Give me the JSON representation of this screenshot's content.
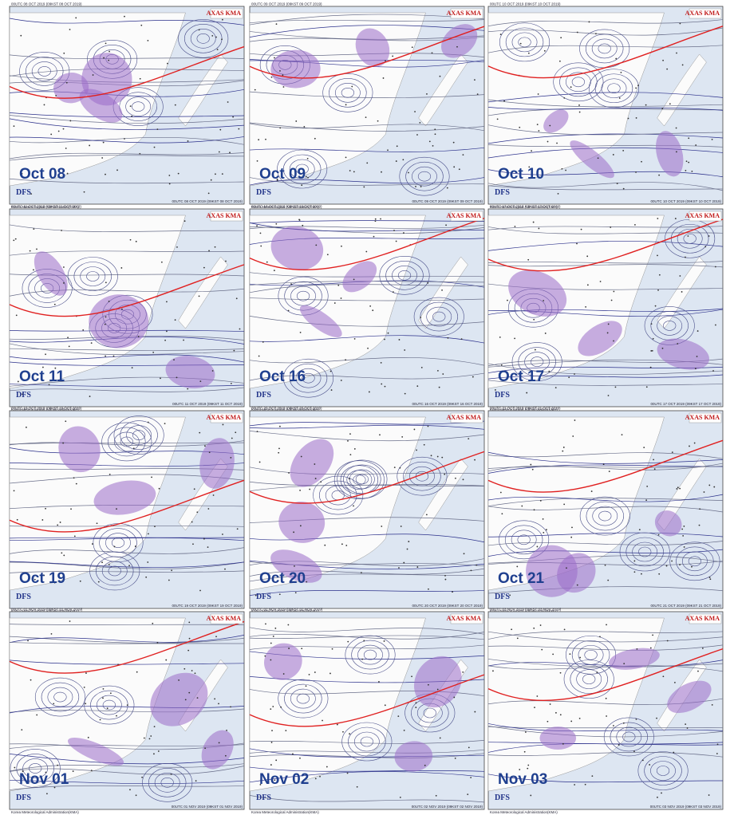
{
  "panels": [
    {
      "label": "Oct 08",
      "caption": "00UTC 08 OCT 2019 (09KST 08 OCT 2019)",
      "brand": "AXAS KMA",
      "source": "DFS",
      "credit": "Korea Meteorological Administration(KMA)"
    },
    {
      "label": "Oct 09",
      "caption": "00UTC 09 OCT 2019 (09KST 09 OCT 2019)",
      "brand": "AXAS KMA",
      "source": "DFS",
      "credit": "Korea Meteorological Administration(KMA)"
    },
    {
      "label": "Oct 10",
      "caption": "00UTC 10 OCT 2019 (09KST 10 OCT 2019)",
      "brand": "AXAS KMA",
      "source": "DFS",
      "credit": "Korea Meteorological Administration(KMA)"
    },
    {
      "label": "Oct 11",
      "caption": "00UTC 11 OCT 2019 (09KST 11 OCT 2019)",
      "brand": "AXAS KMA",
      "source": "DFS",
      "credit": "Korea Meteorological Administration(KMA)"
    },
    {
      "label": "Oct 16",
      "caption": "00UTC 16 OCT 2019 (09KST 16 OCT 2019)",
      "brand": "AXAS KMA",
      "source": "DFS",
      "credit": "Korea Meteorological Administration(KMA)"
    },
    {
      "label": "Oct 17",
      "caption": "00UTC 17 OCT 2019 (09KST 17 OCT 2019)",
      "brand": "AXAS KMA",
      "source": "DFS",
      "credit": "Korea Meteorological Administration(KMA)"
    },
    {
      "label": "Oct 19",
      "caption": "00UTC 19 OCT 2019 (09KST 19 OCT 2019)",
      "brand": "AXAS KMA",
      "source": "DFS",
      "credit": "Korea Meteorological Administration(KMA)"
    },
    {
      "label": "Oct 20",
      "caption": "00UTC 20 OCT 2019 (09KST 20 OCT 2019)",
      "brand": "AXAS KMA",
      "source": "DFS",
      "credit": "Korea Meteorological Administration(KMA)"
    },
    {
      "label": "Oct 21",
      "caption": "00UTC 21 OCT 2019 (09KST 21 OCT 2019)",
      "brand": "AXAS KMA",
      "source": "DFS",
      "credit": "Korea Meteorological Administration(KMA)"
    },
    {
      "label": "Nov 01",
      "caption": "00UTC 01 NOV 2019 (09KST 01 NOV 2019)",
      "brand": "AXAS KMA",
      "source": "DFS",
      "credit": "Korea Meteorological Administration(KMA)"
    },
    {
      "label": "Nov 02",
      "caption": "00UTC 02 NOV 2019 (09KST 02 NOV 2019)",
      "brand": "AXAS KMA",
      "source": "DFS",
      "credit": "Korea Meteorological Administration(KMA)"
    },
    {
      "label": "Nov 03",
      "caption": "00UTC 03 NOV 2019 (09KST 03 NOV 2019)",
      "brand": "AXAS KMA",
      "source": "DFS",
      "credit": "Korea Meteorological Administration(KMA)"
    }
  ]
}
